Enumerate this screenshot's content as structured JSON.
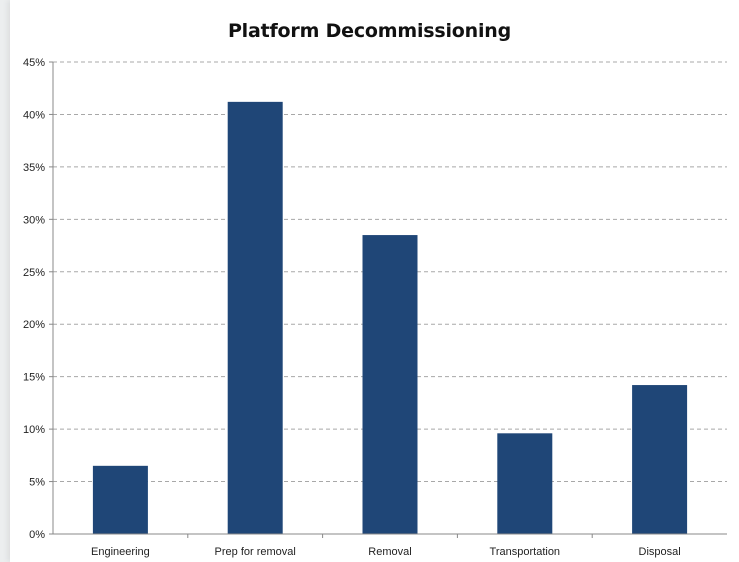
{
  "chart_data": {
    "type": "bar",
    "title": "Platform Decommissioning",
    "categories": [
      "Engineering",
      "Prep for removal",
      "Removal",
      "Transportation",
      "Disposal"
    ],
    "values": [
      6.5,
      41.2,
      28.5,
      9.6,
      14.2
    ],
    "ylim": [
      0,
      45
    ],
    "yticks": [
      0,
      5,
      10,
      15,
      20,
      25,
      30,
      35,
      40,
      45
    ],
    "ytick_labels": [
      "0%",
      "5%",
      "10%",
      "15%",
      "20%",
      "25%",
      "30%",
      "35%",
      "40%",
      "45%"
    ],
    "xlabel": "",
    "ylabel": "",
    "grid": "horizontal dashed",
    "legend": "none",
    "bar_color": "#1f4677"
  }
}
